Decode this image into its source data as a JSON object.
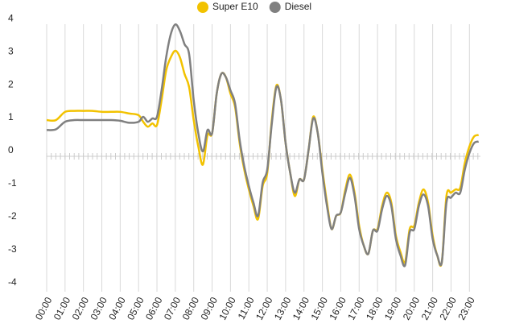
{
  "chart_data": {
    "type": "line",
    "x": [
      0,
      0.5,
      1,
      1.5,
      2,
      2.5,
      3,
      3.5,
      4,
      4.5,
      5,
      5.25,
      5.5,
      5.75,
      6,
      6.25,
      6.5,
      6.75,
      7,
      7.25,
      7.5,
      7.75,
      8,
      8.25,
      8.5,
      8.75,
      9,
      9.25,
      9.5,
      9.75,
      10,
      10.25,
      10.5,
      10.75,
      11,
      11.25,
      11.5,
      11.75,
      12,
      12.25,
      12.5,
      12.75,
      13,
      13.25,
      13.5,
      13.75,
      14,
      14.25,
      14.5,
      14.75,
      15,
      15.25,
      15.5,
      15.75,
      16,
      16.25,
      16.5,
      16.75,
      17,
      17.25,
      17.5,
      17.75,
      18,
      18.25,
      18.5,
      18.75,
      19,
      19.25,
      19.5,
      19.75,
      20,
      20.25,
      20.5,
      20.75,
      21,
      21.25,
      21.5,
      21.75,
      22,
      22.25,
      22.5,
      22.75,
      23,
      23.25,
      23.5
    ],
    "series": [
      {
        "name": "Super E10",
        "color": "#f2c200",
        "values": [
          1.0,
          1.0,
          1.25,
          1.28,
          1.28,
          1.28,
          1.25,
          1.25,
          1.25,
          1.2,
          1.15,
          0.95,
          0.8,
          0.9,
          0.85,
          1.6,
          2.5,
          2.9,
          3.1,
          2.9,
          2.4,
          2.0,
          1.0,
          0.2,
          -0.35,
          0.55,
          0.6,
          1.8,
          2.4,
          2.3,
          1.8,
          1.4,
          0.3,
          -0.5,
          -1.1,
          -1.6,
          -2.0,
          -1.0,
          -0.6,
          1.0,
          2.05,
          1.6,
          0.3,
          -0.6,
          -1.3,
          -0.8,
          -0.8,
          0.1,
          1.1,
          0.6,
          -0.5,
          -1.5,
          -2.3,
          -1.9,
          -1.8,
          -1.1,
          -0.65,
          -1.2,
          -2.2,
          -2.8,
          -3.05,
          -2.35,
          -2.3,
          -1.6,
          -1.2,
          -1.5,
          -2.5,
          -3.0,
          -3.3,
          -2.3,
          -2.2,
          -1.5,
          -1.1,
          -1.5,
          -2.5,
          -3.1,
          -3.3,
          -1.3,
          -1.2,
          -1.1,
          -1.05,
          -0.3,
          0.2,
          0.5,
          0.55
        ]
      },
      {
        "name": "Diesel",
        "color": "#808080",
        "values": [
          0.7,
          0.72,
          0.95,
          1.0,
          1.0,
          1.0,
          1.0,
          1.0,
          0.98,
          0.92,
          0.95,
          1.1,
          0.95,
          1.05,
          1.1,
          1.9,
          2.9,
          3.6,
          3.9,
          3.7,
          3.3,
          3.0,
          1.6,
          0.6,
          0.05,
          0.7,
          0.6,
          1.8,
          2.4,
          2.3,
          1.9,
          1.5,
          0.4,
          -0.4,
          -1.0,
          -1.5,
          -1.9,
          -0.9,
          -0.5,
          0.9,
          2.0,
          1.6,
          0.3,
          -0.6,
          -1.2,
          -0.8,
          -0.8,
          0.1,
          1.05,
          0.6,
          -0.6,
          -1.6,
          -2.3,
          -1.9,
          -1.8,
          -1.2,
          -0.75,
          -1.3,
          -2.3,
          -2.8,
          -3.05,
          -2.35,
          -2.35,
          -1.7,
          -1.3,
          -1.6,
          -2.6,
          -3.1,
          -3.4,
          -2.4,
          -2.3,
          -1.6,
          -1.25,
          -1.6,
          -2.6,
          -3.1,
          -3.3,
          -1.5,
          -1.35,
          -1.2,
          -1.2,
          -0.5,
          0.0,
          0.3,
          0.35
        ]
      }
    ],
    "xlim": [
      0,
      23.6
    ],
    "xticks": [
      {
        "value": 0,
        "label": "00:00"
      },
      {
        "value": 1,
        "label": "01:00"
      },
      {
        "value": 2,
        "label": "02:00"
      },
      {
        "value": 3,
        "label": "03:00"
      },
      {
        "value": 4,
        "label": "04:00"
      },
      {
        "value": 5,
        "label": "05:00"
      },
      {
        "value": 6,
        "label": "06:00"
      },
      {
        "value": 7,
        "label": "07:00"
      },
      {
        "value": 8,
        "label": "08:00"
      },
      {
        "value": 9,
        "label": "09:00"
      },
      {
        "value": 10,
        "label": "10:00"
      },
      {
        "value": 11,
        "label": "11:00"
      },
      {
        "value": 12,
        "label": "12:00"
      },
      {
        "value": 13,
        "label": "13:00"
      },
      {
        "value": 14,
        "label": "14:00"
      },
      {
        "value": 15,
        "label": "15:00"
      },
      {
        "value": 16,
        "label": "16:00"
      },
      {
        "value": 17,
        "label": "17:00"
      },
      {
        "value": 18,
        "label": "18:00"
      },
      {
        "value": 19,
        "label": "19:00"
      },
      {
        "value": 20,
        "label": "20:00"
      },
      {
        "value": 21,
        "label": "21:00"
      },
      {
        "value": 22,
        "label": "22:00"
      },
      {
        "value": 23,
        "label": "23:00"
      }
    ],
    "ylim": [
      -4.2,
      4.2
    ],
    "yticks": [
      4,
      3,
      2,
      1,
      0,
      -1,
      -2,
      -3,
      -4
    ],
    "grid": "x",
    "legend": "top"
  }
}
